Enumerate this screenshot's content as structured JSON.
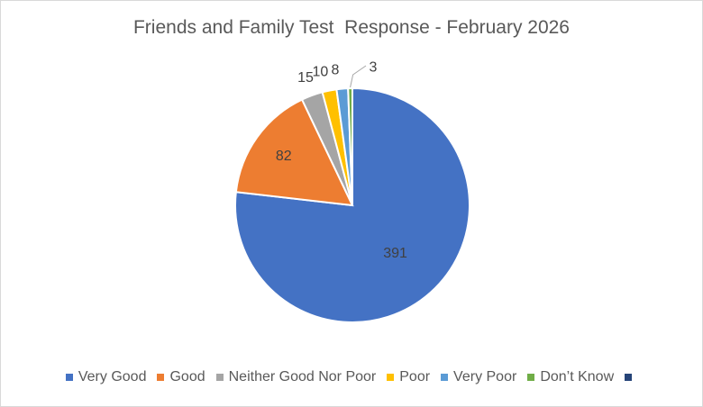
{
  "chart_data": {
    "type": "pie",
    "title": "Friends and Family Test  Response - February 2026",
    "categories": [
      "Very Good",
      "Good",
      "Neither Good Nor Poor",
      "Poor",
      "Very Poor",
      "Don’t Know",
      ""
    ],
    "values": [
      391,
      82,
      15,
      10,
      8,
      3,
      0
    ],
    "data_labels": [
      "391",
      "82",
      "15",
      "10",
      "8",
      "3",
      ""
    ],
    "colors": [
      "#4472C4",
      "#ED7D31",
      "#A5A5A5",
      "#FFC000",
      "#5B9BD5",
      "#70AD47",
      "#264478"
    ],
    "legend": "bottom"
  }
}
